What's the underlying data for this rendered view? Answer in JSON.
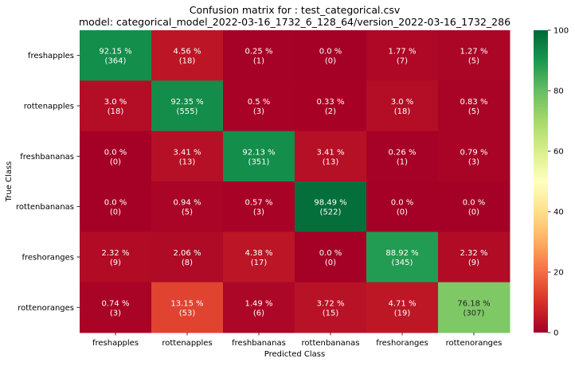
{
  "chart_data": {
    "type": "heatmap",
    "title": "Confusion matrix for : test_categorical.csv",
    "subtitle": "model: categorical_model_2022-03-16_1732_6_128_64/version_2022-03-16_1732_286",
    "xlabel": "Predicted Class",
    "ylabel": "True Class",
    "x_categories": [
      "freshapples",
      "rottenapples",
      "freshbananas",
      "rottenbananas",
      "freshoranges",
      "rottenoranges"
    ],
    "y_categories": [
      "freshapples",
      "rottenapples",
      "freshbananas",
      "rottenbananas",
      "freshoranges",
      "rottenoranges"
    ],
    "percent_labels": [
      [
        "92.15 %",
        "4.56 %",
        "0.25 %",
        "0.0 %",
        "1.77 %",
        "1.27 %"
      ],
      [
        "3.0 %",
        "92.35 %",
        "0.5 %",
        "0.33 %",
        "3.0 %",
        "0.83 %"
      ],
      [
        "0.0 %",
        "3.41 %",
        "92.13 %",
        "3.41 %",
        "0.26 %",
        "0.79 %"
      ],
      [
        "0.0 %",
        "0.94 %",
        "0.57 %",
        "98.49 %",
        "0.0 %",
        "0.0 %"
      ],
      [
        "2.32 %",
        "2.06 %",
        "4.38 %",
        "0.0 %",
        "88.92 %",
        "2.32 %"
      ],
      [
        "0.74 %",
        "13.15 %",
        "1.49 %",
        "3.72 %",
        "4.71 %",
        "76.18 %"
      ]
    ],
    "count_labels": [
      [
        "(364)",
        "(18)",
        "(1)",
        "(0)",
        "(7)",
        "(5)"
      ],
      [
        "(18)",
        "(555)",
        "(3)",
        "(2)",
        "(18)",
        "(5)"
      ],
      [
        "(0)",
        "(13)",
        "(351)",
        "(13)",
        "(1)",
        "(3)"
      ],
      [
        "(0)",
        "(5)",
        "(3)",
        "(522)",
        "(0)",
        "(0)"
      ],
      [
        "(9)",
        "(8)",
        "(17)",
        "(0)",
        "(345)",
        "(9)"
      ],
      [
        "(3)",
        "(53)",
        "(6)",
        "(15)",
        "(19)",
        "(307)"
      ]
    ],
    "values": [
      [
        92.15,
        4.56,
        0.25,
        0.0,
        1.77,
        1.27
      ],
      [
        3.0,
        92.35,
        0.5,
        0.33,
        3.0,
        0.83
      ],
      [
        0.0,
        3.41,
        92.13,
        3.41,
        0.26,
        0.79
      ],
      [
        0.0,
        0.94,
        0.57,
        98.49,
        0.0,
        0.0
      ],
      [
        2.32,
        2.06,
        4.38,
        0.0,
        88.92,
        2.32
      ],
      [
        0.74,
        13.15,
        1.49,
        3.72,
        4.71,
        76.18
      ]
    ],
    "colormap": "RdYlGn",
    "vmin": 0,
    "vmax": 100,
    "colorbar_ticks": [
      "0",
      "20",
      "40",
      "60",
      "80",
      "100"
    ],
    "colorbar_tick_values": [
      0,
      20,
      40,
      60,
      80,
      100
    ]
  }
}
